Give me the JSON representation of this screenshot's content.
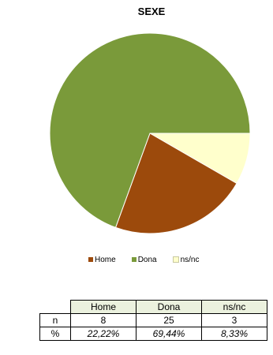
{
  "chart_data": {
    "type": "pie",
    "title": "SEXE",
    "categories": [
      "Home",
      "Dona",
      "ns/nc"
    ],
    "values": [
      8,
      25,
      3
    ],
    "colors": [
      "#9c4a0c",
      "#7a9a3a",
      "#ffffcc"
    ],
    "legend_position": "bottom"
  },
  "table": {
    "headers": [
      "Home",
      "Dona",
      "ns/nc"
    ],
    "rows": [
      {
        "label": "n",
        "values": [
          "8",
          "25",
          "3"
        ]
      },
      {
        "label": "%",
        "values": [
          "22,22%",
          "69,44%",
          "8,33%"
        ]
      }
    ]
  }
}
